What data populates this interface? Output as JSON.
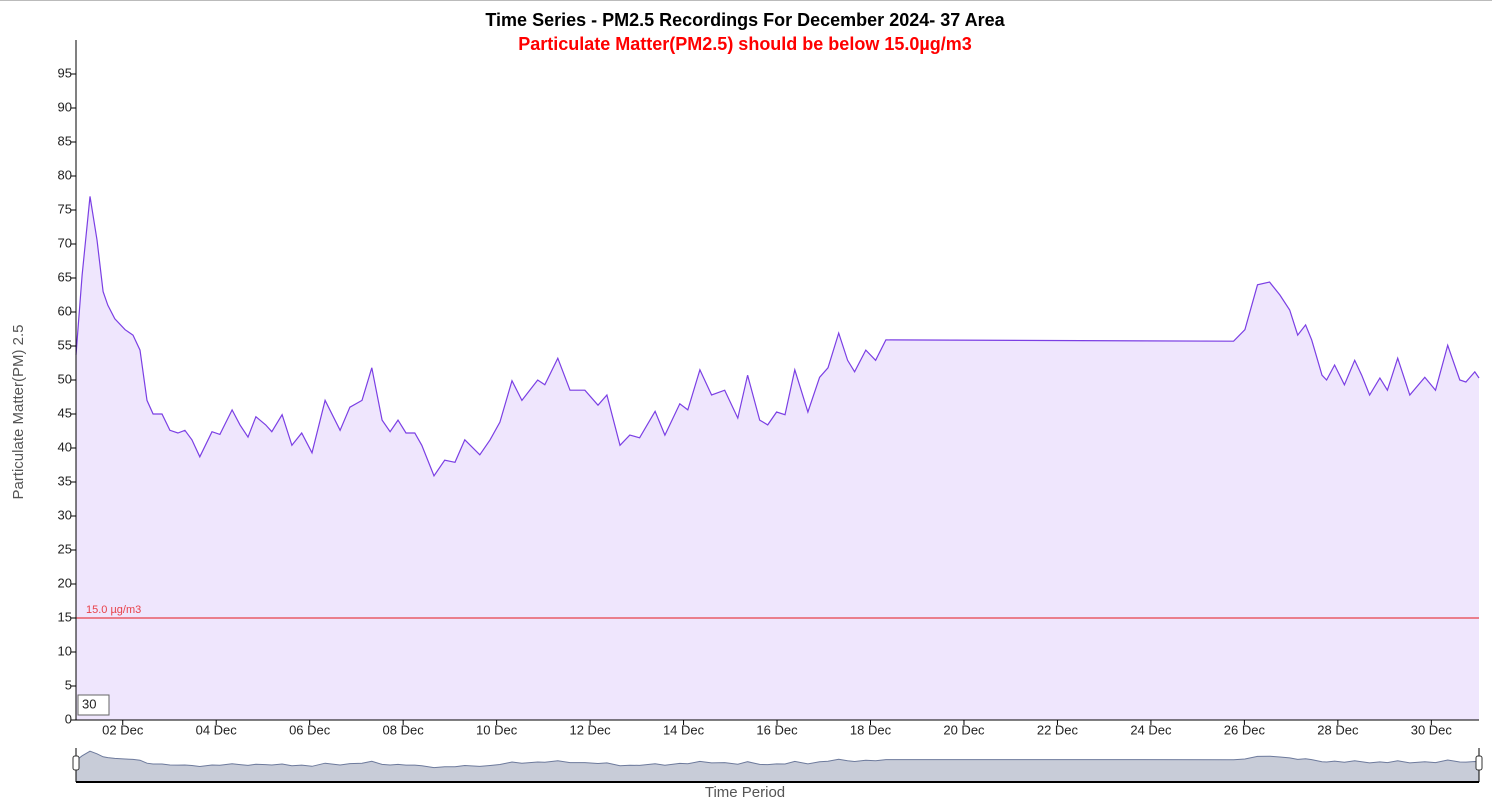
{
  "chart_data": {
    "type": "area",
    "title": "Time Series - PM2.5 Recordings For December 2024- 37 Area",
    "subtitle": "Particulate Matter(PM2.5) should be below 15.0µg/m3",
    "y_label": "Particulate Matter(PM) 2.5",
    "x_label": "Time Period",
    "range_input": "30",
    "threshold": {
      "value": 15,
      "label": "15.0 µg/m3",
      "color": "#e8414a"
    },
    "xlim": [
      1,
      31.02
    ],
    "xticks": [
      {
        "value": 2,
        "label": "02 Dec"
      },
      {
        "value": 4,
        "label": "04 Dec"
      },
      {
        "value": 6,
        "label": "06 Dec"
      },
      {
        "value": 8,
        "label": "08 Dec"
      },
      {
        "value": 10,
        "label": "10 Dec"
      },
      {
        "value": 12,
        "label": "12 Dec"
      },
      {
        "value": 14,
        "label": "14 Dec"
      },
      {
        "value": 16,
        "label": "16 Dec"
      },
      {
        "value": 18,
        "label": "18 Dec"
      },
      {
        "value": 20,
        "label": "20 Dec"
      },
      {
        "value": 22,
        "label": "22 Dec"
      },
      {
        "value": 24,
        "label": "24 Dec"
      },
      {
        "value": 26,
        "label": "26 Dec"
      },
      {
        "value": 28,
        "label": "28 Dec"
      },
      {
        "value": 30,
        "label": "30 Dec"
      }
    ],
    "ylim": [
      0,
      100
    ],
    "yticks": [
      0,
      5,
      10,
      15,
      20,
      25,
      30,
      35,
      40,
      45,
      50,
      55,
      60,
      65,
      70,
      75,
      80,
      85,
      90,
      95
    ],
    "x": [
      1.0,
      1.13,
      1.3,
      1.45,
      1.58,
      1.68,
      1.83,
      2.05,
      2.22,
      2.37,
      2.52,
      2.65,
      2.84,
      3.01,
      3.18,
      3.33,
      3.48,
      3.65,
      3.91,
      4.08,
      4.34,
      4.51,
      4.68,
      4.85,
      5.06,
      5.19,
      5.41,
      5.62,
      5.83,
      6.05,
      6.33,
      6.65,
      6.86,
      7.12,
      7.33,
      7.55,
      7.72,
      7.89,
      8.06,
      8.25,
      8.4,
      8.66,
      8.89,
      9.11,
      9.32,
      9.64,
      9.86,
      10.07,
      10.33,
      10.54,
      10.88,
      11.03,
      11.31,
      11.57,
      11.89,
      12.17,
      12.36,
      12.64,
      12.85,
      13.06,
      13.39,
      13.6,
      13.92,
      14.09,
      14.35,
      14.6,
      14.88,
      15.16,
      15.37,
      15.63,
      15.8,
      15.99,
      16.17,
      16.38,
      16.66,
      16.91,
      17.09,
      17.32,
      17.51,
      17.66,
      17.9,
      18.11,
      18.33,
      25.77,
      26.01,
      26.28,
      26.54,
      26.76,
      26.97,
      27.14,
      27.31,
      27.44,
      27.66,
      27.76,
      27.93,
      28.14,
      28.36,
      28.51,
      28.68,
      28.9,
      29.06,
      29.28,
      29.54,
      29.86,
      30.09,
      30.35,
      30.61,
      30.74,
      30.93,
      31.02
    ],
    "series": [
      {
        "name": "PM2.5",
        "color": "#7b3fe4",
        "fill": "#efe6fd",
        "values": [
          53.7,
          65.4,
          77,
          70.6,
          63,
          61,
          59,
          57.4,
          56.6,
          54.4,
          47,
          45,
          45,
          42.6,
          42.2,
          42.6,
          41.2,
          38.7,
          42.4,
          42,
          45.6,
          43.4,
          41.6,
          44.6,
          43.4,
          42.4,
          44.9,
          40.4,
          42.2,
          39.3,
          47,
          42.6,
          46,
          47,
          51.8,
          44.1,
          42.4,
          44.1,
          42.2,
          42.2,
          40.4,
          35.9,
          38.2,
          37.9,
          41.2,
          39,
          41.2,
          43.8,
          49.9,
          47,
          50,
          49.3,
          53.2,
          48.5,
          48.5,
          46.3,
          47.8,
          40.4,
          41.9,
          41.5,
          45.4,
          41.9,
          46.5,
          45.6,
          51.5,
          47.8,
          48.5,
          44.4,
          50.7,
          44.1,
          43.4,
          45.3,
          44.9,
          51.5,
          45.3,
          50.4,
          51.8,
          56.9,
          52.9,
          51.2,
          54.4,
          52.9,
          55.9,
          55.7,
          57.4,
          64,
          64.4,
          62.5,
          60.3,
          56.6,
          58.1,
          55.9,
          50.7,
          50,
          52.2,
          49.3,
          52.9,
          50.7,
          47.8,
          50.3,
          48.5,
          53.2,
          47.8,
          50.4,
          48.5,
          55.1,
          50,
          49.7,
          51.2,
          50.3
        ]
      }
    ]
  }
}
